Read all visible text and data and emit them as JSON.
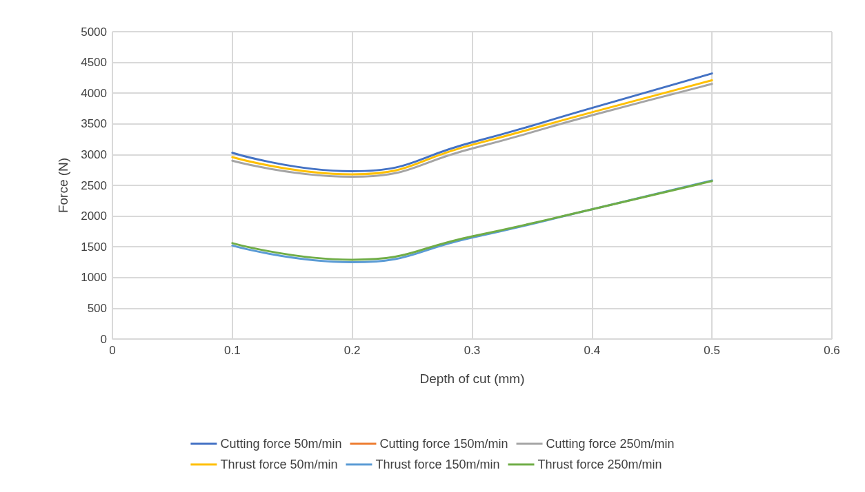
{
  "chart_data": {
    "type": "line",
    "xlabel": "Depth of cut (mm)",
    "ylabel": "Force (N)",
    "x": [
      0.1,
      0.2,
      0.3,
      0.4,
      0.5
    ],
    "series": [
      {
        "name": "Cutting force 50m/min",
        "color": "#4472c4",
        "values": [
          3030,
          2730,
          3200,
          3760,
          4320
        ]
      },
      {
        "name": "Cutting force 150m/min",
        "color": "#ed7d31",
        "values": [
          null,
          null,
          null,
          null,
          null
        ]
      },
      {
        "name": "Cutting force 250m/min",
        "color": "#a5a5a5",
        "values": [
          2900,
          2640,
          3100,
          3640,
          4150
        ]
      },
      {
        "name": "Thrust force 50m/min",
        "color": "#ffc000",
        "values": [
          2960,
          2680,
          3160,
          3690,
          4210
        ]
      },
      {
        "name": "Thrust force 150m/min",
        "color": "#5b9bd5",
        "values": [
          1520,
          1250,
          1650,
          2110,
          2580
        ]
      },
      {
        "name": "Thrust force 250m/min",
        "color": "#70ad47",
        "values": [
          1560,
          1290,
          1670,
          2110,
          2570
        ]
      }
    ],
    "xlim": [
      0,
      0.6
    ],
    "xticks": [
      0,
      0.1,
      0.2,
      0.3,
      0.4,
      0.5,
      0.6
    ],
    "ylim": [
      0,
      5000
    ],
    "yticks": [
      0,
      500,
      1000,
      1500,
      2000,
      2500,
      3000,
      3500,
      4000,
      4500,
      5000
    ],
    "grid": true,
    "legend": "bottom",
    "marker": "none",
    "line_style": "solid"
  }
}
